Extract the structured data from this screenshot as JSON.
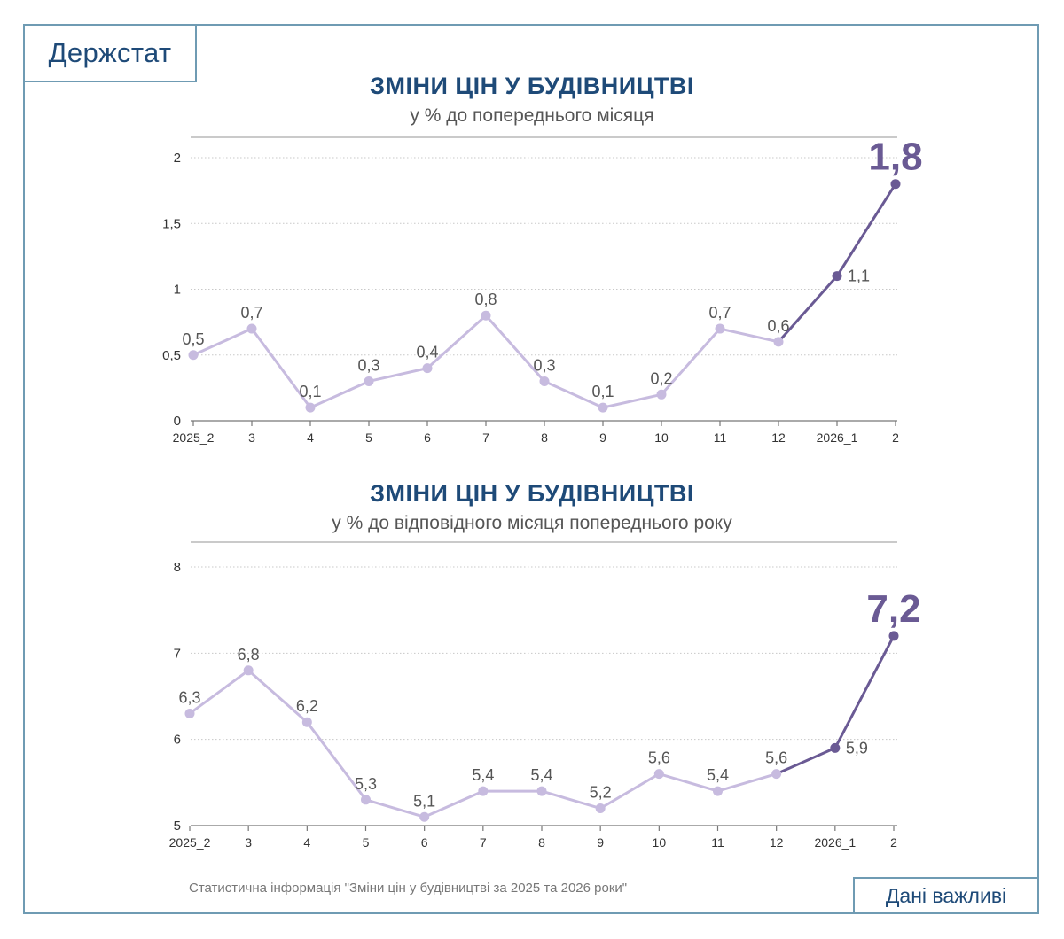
{
  "logo": "Держстат",
  "badge": "Дані важливі",
  "source": "Статистична інформація \"Зміни цін у будівництві за 2025 та 2026 роки\"",
  "colors": {
    "light_series": "#c7bbdf",
    "dark_series": "#6a5a94",
    "title": "#1e4a78",
    "frame": "#6f9bb3"
  },
  "chart_data": [
    {
      "type": "line",
      "title": "ЗМІНИ ЦІН У БУДІВНИЦТВІ",
      "subtitle": "у % до попереднього місяця",
      "categories": [
        "2025_2",
        "3",
        "4",
        "5",
        "6",
        "7",
        "8",
        "9",
        "10",
        "11",
        "12",
        "2026_1",
        "2"
      ],
      "values": [
        0.5,
        0.7,
        0.1,
        0.3,
        0.4,
        0.8,
        0.3,
        0.1,
        0.2,
        0.7,
        0.6,
        1.1,
        1.8
      ],
      "labels": [
        "0,5",
        "0,7",
        "0,1",
        "0,3",
        "0,4",
        "0,8",
        "0,3",
        "0,1",
        "0,2",
        "0,7",
        "0,6",
        "1,1",
        "1,8"
      ],
      "ylim": [
        0,
        2
      ],
      "yticks": [
        0,
        0.5,
        1,
        1.5,
        2
      ],
      "ytick_labels": [
        "0",
        "0,5",
        "1",
        "1,5",
        "2"
      ],
      "highlight_from_index": 10,
      "grid": true
    },
    {
      "type": "line",
      "title": "ЗМІНИ ЦІН У БУДІВНИЦТВІ",
      "subtitle": "у % до відповідного місяця попереднього року",
      "categories": [
        "2025_2",
        "3",
        "4",
        "5",
        "6",
        "7",
        "8",
        "9",
        "10",
        "11",
        "12",
        "2026_1",
        "2"
      ],
      "values": [
        6.3,
        6.8,
        6.2,
        5.3,
        5.1,
        5.4,
        5.4,
        5.2,
        5.6,
        5.4,
        5.6,
        5.9,
        7.2
      ],
      "labels": [
        "6,3",
        "6,8",
        "6,2",
        "5,3",
        "5,1",
        "5,4",
        "5,4",
        "5,2",
        "5,6",
        "5,4",
        "5,6",
        "5,9",
        "7,2"
      ],
      "ylim": [
        5,
        8
      ],
      "yticks": [
        5,
        6,
        7,
        8
      ],
      "ytick_labels": [
        "5",
        "6",
        "7",
        "8"
      ],
      "highlight_from_index": 10,
      "grid": true
    }
  ]
}
